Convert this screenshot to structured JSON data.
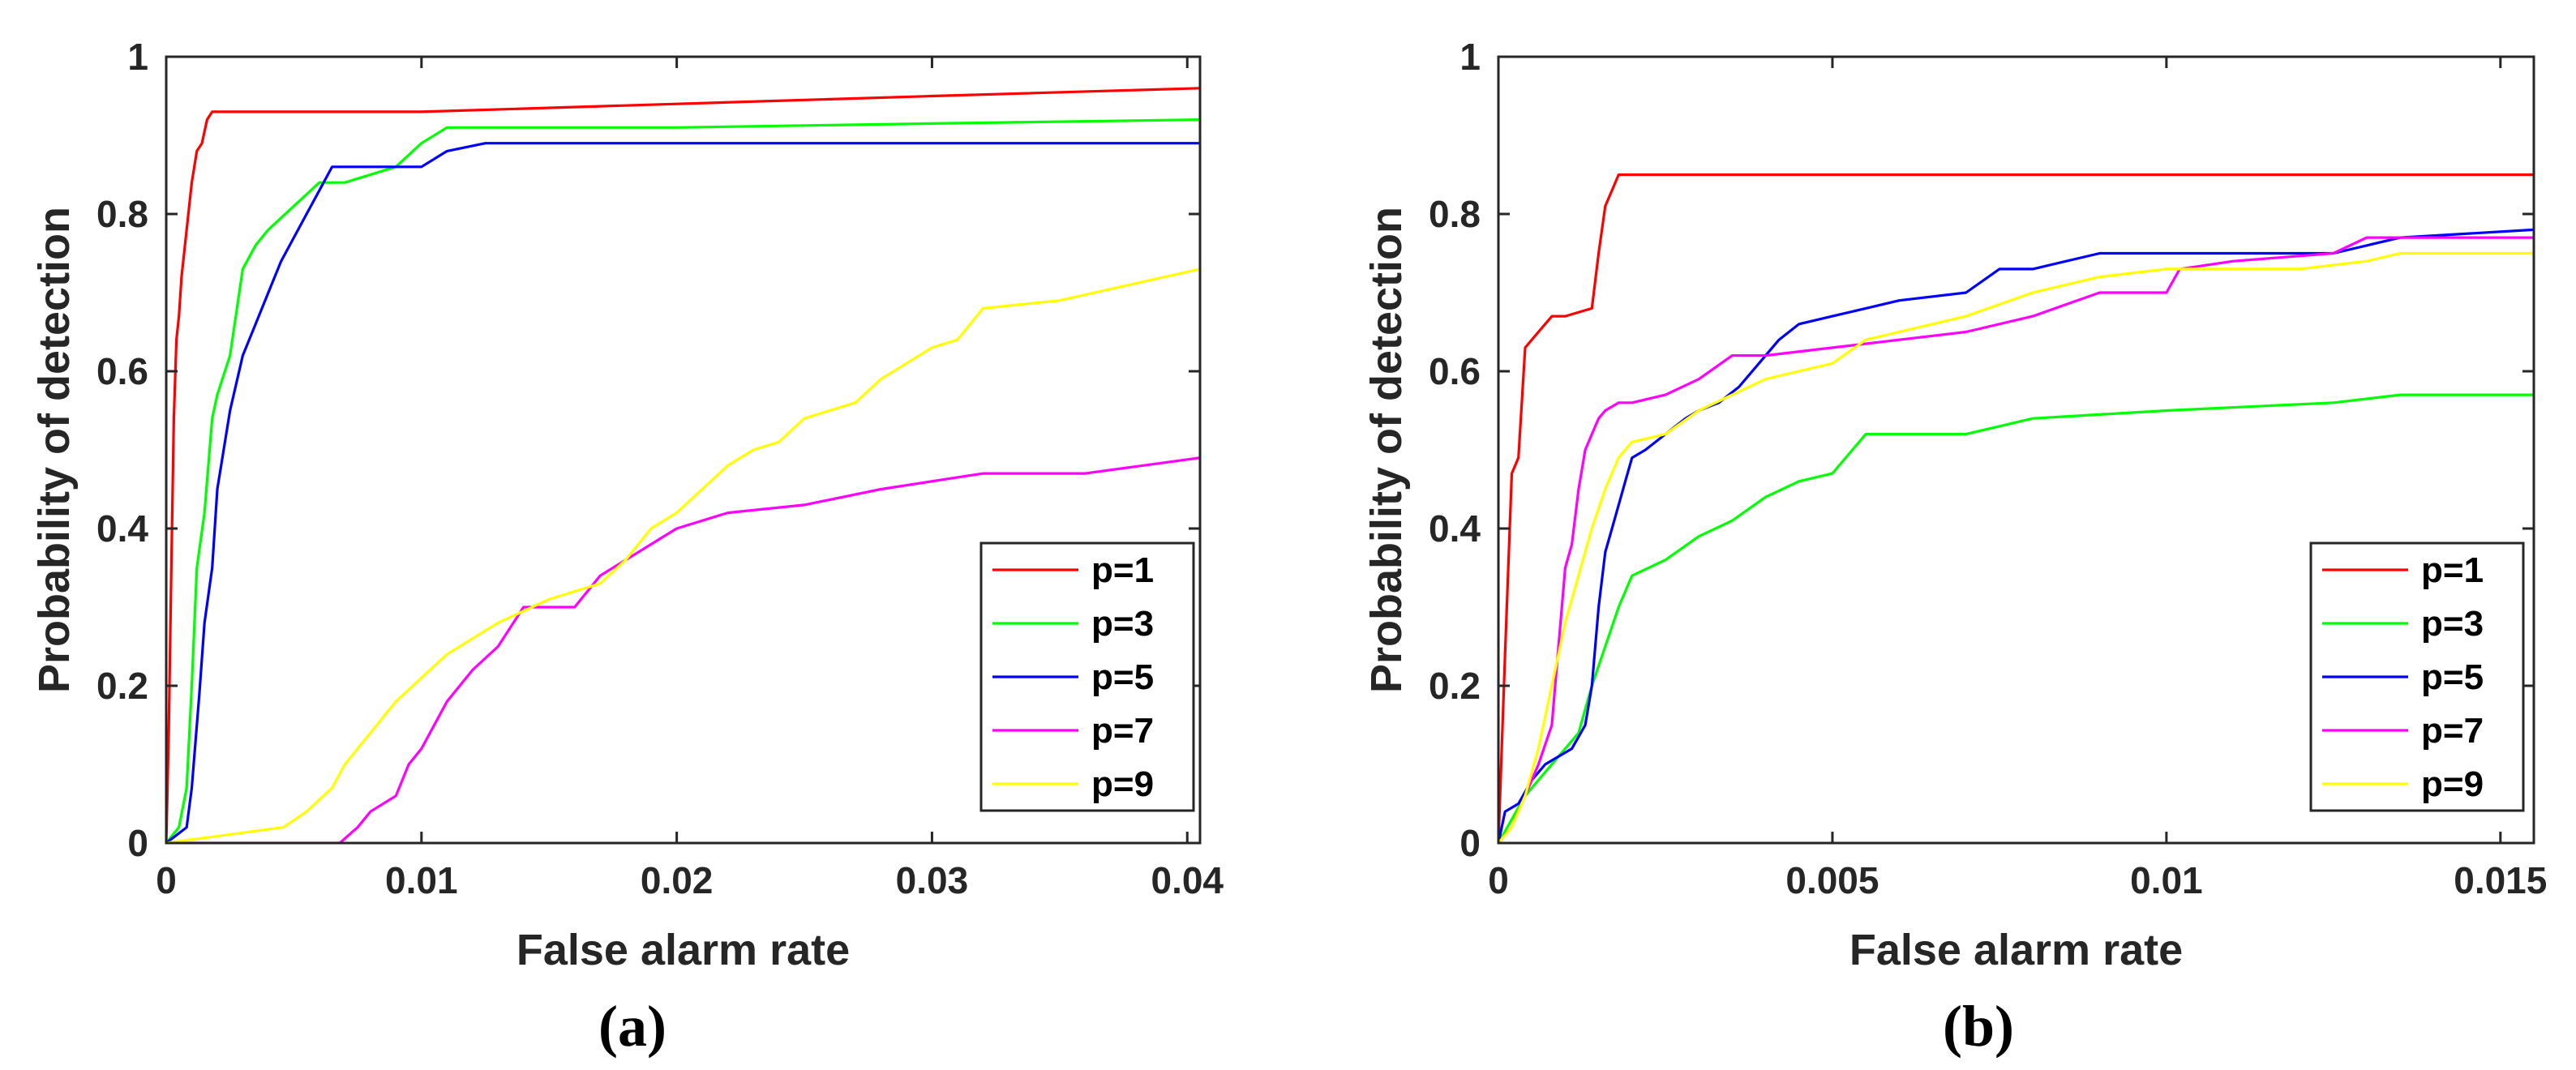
{
  "chart_data": [
    {
      "type": "line",
      "panel_label": "(a)",
      "xlabel": "False alarm rate",
      "ylabel": "Probability of detection",
      "xlim": [
        0,
        0.0405
      ],
      "ylim": [
        0,
        1
      ],
      "xticks": [
        0,
        0.01,
        0.02,
        0.03,
        0.04
      ],
      "xtick_labels": [
        "0",
        "0.01",
        "0.02",
        "0.03",
        "0.04"
      ],
      "yticks": [
        0,
        0.2,
        0.4,
        0.6,
        0.8,
        1
      ],
      "ytick_labels": [
        "0",
        "0.2",
        "0.4",
        "0.6",
        "0.8",
        "1"
      ],
      "legend_position": "bottom-right",
      "series": [
        {
          "name": "p=1",
          "color": "#ff0000",
          "x": [
            0,
            0.0001,
            0.0002,
            0.0003,
            0.0004,
            0.0005,
            0.0006,
            0.0008,
            0.001,
            0.0012,
            0.0014,
            0.0016,
            0.0018,
            0.002,
            0.01,
            0.02,
            0.03,
            0.0405
          ],
          "y": [
            0,
            0.14,
            0.35,
            0.54,
            0.64,
            0.67,
            0.72,
            0.78,
            0.84,
            0.88,
            0.89,
            0.92,
            0.93,
            0.93,
            0.93,
            0.94,
            0.95,
            0.96
          ]
        },
        {
          "name": "p=3",
          "color": "#00ff00",
          "x": [
            0,
            0.0005,
            0.0008,
            0.001,
            0.0012,
            0.0015,
            0.0018,
            0.002,
            0.0025,
            0.003,
            0.0035,
            0.004,
            0.005,
            0.006,
            0.007,
            0.009,
            0.01,
            0.011,
            0.02,
            0.03,
            0.0405
          ],
          "y": [
            0,
            0.02,
            0.07,
            0.2,
            0.35,
            0.42,
            0.54,
            0.57,
            0.62,
            0.73,
            0.76,
            0.78,
            0.81,
            0.84,
            0.84,
            0.86,
            0.89,
            0.91,
            0.91,
            0.915,
            0.92
          ]
        },
        {
          "name": "p=5",
          "color": "#0000ff",
          "x": [
            0,
            0.0008,
            0.001,
            0.0013,
            0.0015,
            0.0018,
            0.002,
            0.0025,
            0.003,
            0.0035,
            0.004,
            0.0045,
            0.005,
            0.0055,
            0.006,
            0.0065,
            0.01,
            0.011,
            0.0125,
            0.02,
            0.03,
            0.0405
          ],
          "y": [
            0,
            0.02,
            0.07,
            0.19,
            0.28,
            0.35,
            0.45,
            0.55,
            0.62,
            0.66,
            0.7,
            0.74,
            0.77,
            0.8,
            0.83,
            0.86,
            0.86,
            0.88,
            0.89,
            0.89,
            0.89,
            0.89
          ]
        },
        {
          "name": "p=7",
          "color": "#ff00ff",
          "x": [
            0,
            0.0068,
            0.0075,
            0.008,
            0.009,
            0.0095,
            0.01,
            0.011,
            0.012,
            0.013,
            0.014,
            0.016,
            0.017,
            0.018,
            0.019,
            0.02,
            0.022,
            0.025,
            0.028,
            0.032,
            0.036,
            0.0405
          ],
          "y": [
            0,
            0,
            0.02,
            0.04,
            0.06,
            0.1,
            0.12,
            0.18,
            0.22,
            0.25,
            0.3,
            0.3,
            0.34,
            0.36,
            0.38,
            0.4,
            0.42,
            0.43,
            0.45,
            0.47,
            0.47,
            0.49
          ]
        },
        {
          "name": "p=9",
          "color": "#ffff00",
          "x": [
            0,
            0.0046,
            0.0055,
            0.0065,
            0.007,
            0.0075,
            0.008,
            0.0085,
            0.009,
            0.01,
            0.011,
            0.012,
            0.013,
            0.015,
            0.016,
            0.017,
            0.018,
            0.019,
            0.02,
            0.021,
            0.022,
            0.023,
            0.024,
            0.025,
            0.027,
            0.028,
            0.029,
            0.03,
            0.031,
            0.032,
            0.035,
            0.0405
          ],
          "y": [
            0,
            0.02,
            0.04,
            0.07,
            0.1,
            0.12,
            0.14,
            0.16,
            0.18,
            0.21,
            0.24,
            0.26,
            0.28,
            0.31,
            0.32,
            0.33,
            0.36,
            0.4,
            0.42,
            0.45,
            0.48,
            0.5,
            0.51,
            0.54,
            0.56,
            0.59,
            0.61,
            0.63,
            0.64,
            0.68,
            0.69,
            0.73
          ]
        }
      ]
    },
    {
      "type": "line",
      "panel_label": "(b)",
      "xlabel": "False alarm rate",
      "ylabel": "Probability of detection",
      "xlim": [
        0,
        0.0155
      ],
      "ylim": [
        0,
        1
      ],
      "xticks": [
        0,
        0.005,
        0.01,
        0.015
      ],
      "xtick_labels": [
        "0",
        "0.005",
        "0.01",
        "0.015"
      ],
      "yticks": [
        0,
        0.2,
        0.4,
        0.6,
        0.8,
        1
      ],
      "ytick_labels": [
        "0",
        "0.2",
        "0.4",
        "0.6",
        "0.8",
        "1"
      ],
      "legend_position": "bottom-right",
      "series": [
        {
          "name": "p=1",
          "color": "#ff0000",
          "x": [
            0,
            0.0001,
            0.0002,
            0.0003,
            0.0004,
            0.0005,
            0.0006,
            0.0007,
            0.0008,
            0.001,
            0.0014,
            0.0015,
            0.0016,
            0.0017,
            0.0018,
            0.005,
            0.01,
            0.0155
          ],
          "y": [
            0,
            0.24,
            0.47,
            0.49,
            0.63,
            0.64,
            0.65,
            0.66,
            0.67,
            0.67,
            0.68,
            0.75,
            0.81,
            0.83,
            0.85,
            0.85,
            0.85,
            0.85
          ]
        },
        {
          "name": "p=3",
          "color": "#00ff00",
          "x": [
            0,
            0.0002,
            0.0004,
            0.0006,
            0.0008,
            0.001,
            0.0012,
            0.0014,
            0.0016,
            0.0018,
            0.002,
            0.0025,
            0.003,
            0.0035,
            0.004,
            0.0045,
            0.005,
            0.0055,
            0.007,
            0.008,
            0.01,
            0.0125,
            0.0135,
            0.0155
          ],
          "y": [
            0,
            0.03,
            0.06,
            0.08,
            0.1,
            0.12,
            0.14,
            0.2,
            0.25,
            0.3,
            0.34,
            0.36,
            0.39,
            0.41,
            0.44,
            0.46,
            0.47,
            0.52,
            0.52,
            0.54,
            0.55,
            0.56,
            0.57,
            0.57
          ]
        },
        {
          "name": "p=5",
          "color": "#0000ff",
          "x": [
            0,
            0.0001,
            0.0003,
            0.0005,
            0.0007,
            0.0009,
            0.0011,
            0.0013,
            0.0014,
            0.0015,
            0.0016,
            0.0017,
            0.0018,
            0.0019,
            0.002,
            0.0022,
            0.0025,
            0.0028,
            0.003,
            0.0033,
            0.0036,
            0.0039,
            0.0042,
            0.0045,
            0.005,
            0.0055,
            0.006,
            0.007,
            0.0075,
            0.008,
            0.009,
            0.01,
            0.011,
            0.012,
            0.0125,
            0.0135,
            0.0155
          ],
          "y": [
            0,
            0.04,
            0.05,
            0.08,
            0.1,
            0.11,
            0.12,
            0.15,
            0.2,
            0.3,
            0.37,
            0.4,
            0.43,
            0.46,
            0.49,
            0.5,
            0.52,
            0.54,
            0.55,
            0.56,
            0.58,
            0.61,
            0.64,
            0.66,
            0.67,
            0.68,
            0.69,
            0.7,
            0.73,
            0.73,
            0.75,
            0.75,
            0.75,
            0.75,
            0.75,
            0.77,
            0.78
          ]
        },
        {
          "name": "p=7",
          "color": "#ff00ff",
          "x": [
            0,
            0.0002,
            0.0004,
            0.0006,
            0.0008,
            0.0009,
            0.001,
            0.0011,
            0.0012,
            0.0013,
            0.0014,
            0.0015,
            0.0016,
            0.0018,
            0.002,
            0.0025,
            0.003,
            0.0035,
            0.004,
            0.005,
            0.006,
            0.007,
            0.008,
            0.009,
            0.01,
            0.0102,
            0.011,
            0.0125,
            0.013,
            0.0155
          ],
          "y": [
            0,
            0.02,
            0.06,
            0.1,
            0.15,
            0.25,
            0.35,
            0.38,
            0.45,
            0.5,
            0.52,
            0.54,
            0.55,
            0.56,
            0.56,
            0.57,
            0.59,
            0.62,
            0.62,
            0.63,
            0.64,
            0.65,
            0.67,
            0.7,
            0.7,
            0.73,
            0.74,
            0.75,
            0.77,
            0.77
          ]
        },
        {
          "name": "p=9",
          "color": "#ffff00",
          "x": [
            0,
            0.0002,
            0.0004,
            0.0006,
            0.0008,
            0.001,
            0.0012,
            0.0014,
            0.0016,
            0.0018,
            0.002,
            0.0025,
            0.003,
            0.0035,
            0.004,
            0.0045,
            0.005,
            0.0055,
            0.006,
            0.007,
            0.008,
            0.009,
            0.01,
            0.011,
            0.012,
            0.013,
            0.0135,
            0.0155
          ],
          "y": [
            0,
            0.02,
            0.06,
            0.12,
            0.2,
            0.28,
            0.34,
            0.4,
            0.45,
            0.49,
            0.51,
            0.52,
            0.55,
            0.57,
            0.59,
            0.6,
            0.61,
            0.64,
            0.65,
            0.67,
            0.7,
            0.72,
            0.73,
            0.73,
            0.73,
            0.74,
            0.75,
            0.75
          ]
        }
      ]
    }
  ]
}
